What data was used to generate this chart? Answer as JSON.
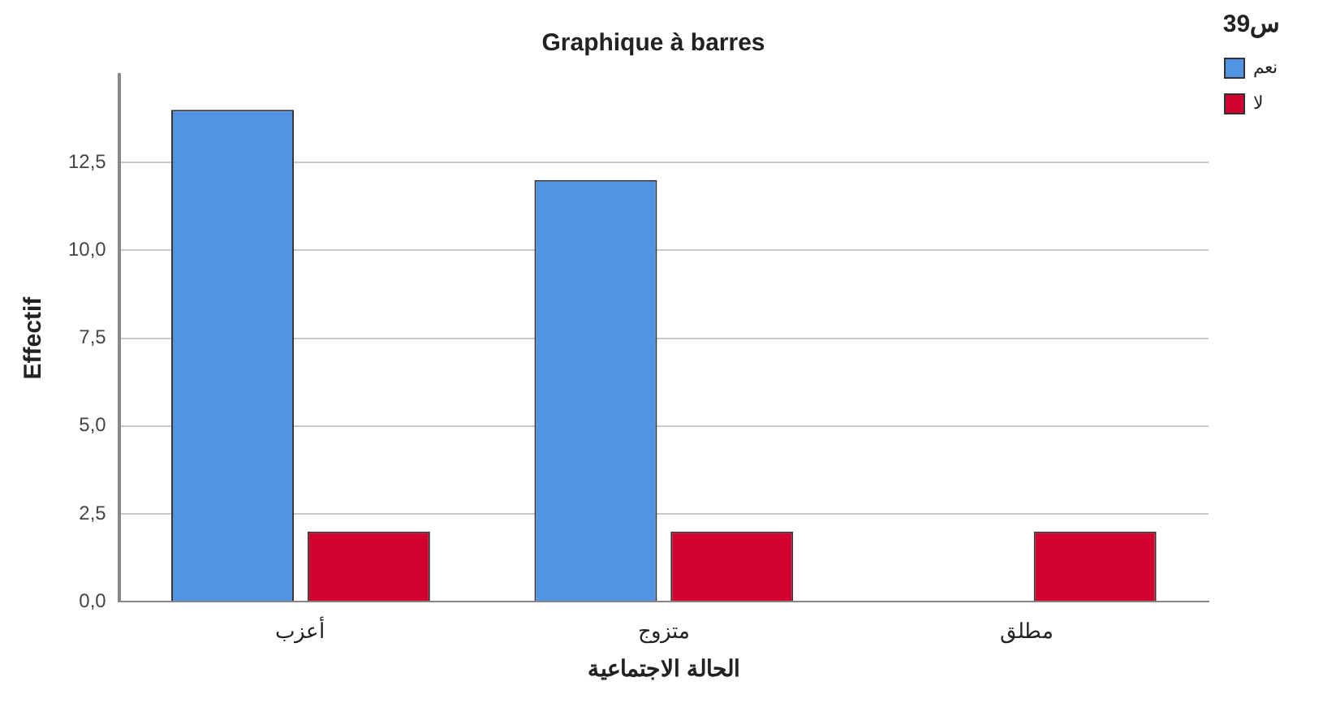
{
  "chart_data": {
    "type": "bar",
    "title": "Graphique à barres",
    "xlabel": "الحالة الاجتماعية",
    "ylabel": "Effectif",
    "legend_title": "س39",
    "categories": [
      "أعزب",
      "متزوج",
      "مطلق"
    ],
    "series": [
      {
        "name": "نعم",
        "color": "#5294e2",
        "values": [
          14,
          12,
          null
        ]
      },
      {
        "name": "لا",
        "color": "#d1002e",
        "values": [
          2,
          2,
          2
        ]
      }
    ],
    "ylim": [
      0,
      15
    ],
    "yticks": [
      {
        "value": 0,
        "label": "0,0"
      },
      {
        "value": 2.5,
        "label": "2,5"
      },
      {
        "value": 5,
        "label": "5,0"
      },
      {
        "value": 7.5,
        "label": "7,5"
      },
      {
        "value": 10,
        "label": "10,0"
      },
      {
        "value": 12.5,
        "label": "12,5"
      }
    ],
    "grid": "y",
    "legend": "top right"
  }
}
